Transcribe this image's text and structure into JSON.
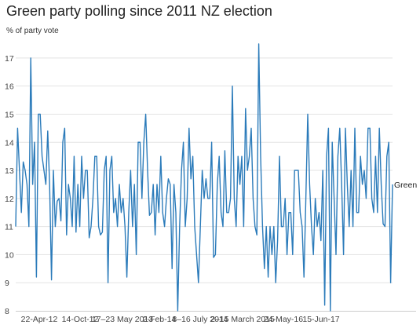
{
  "chart_data": {
    "type": "line",
    "title": "Green party polling since 2011 NZ election",
    "subtitle": "% of party vote",
    "ylim": [
      8,
      17.5
    ],
    "yticks": [
      8,
      9,
      10,
      11,
      12,
      13,
      14,
      15,
      16,
      17
    ],
    "xlim": [
      0,
      270
    ],
    "xticks": [
      {
        "x": 16,
        "label": "22-Apr-12"
      },
      {
        "x": 51,
        "label": "14-Oct-12"
      },
      {
        "x": 92,
        "label": "17–23 May 2013"
      },
      {
        "x": 138,
        "label": "2-Feb-14"
      },
      {
        "x": 179,
        "label": "8–16 July 2014"
      },
      {
        "x": 226,
        "label": "2–15 March 2015"
      },
      {
        "x": 269,
        "label": "24-May-16"
      },
      {
        "x": 306,
        "label": "15-Jun-17"
      }
    ],
    "grid": true,
    "series": [
      {
        "name": "Green",
        "color": "#2b7bba",
        "values": [
          11.0,
          14.5,
          13.0,
          11.5,
          13.3,
          13.0,
          12.5,
          11.0,
          17.0,
          12.5,
          14.0,
          9.2,
          15.0,
          15.0,
          13.5,
          13.0,
          12.5,
          14.4,
          12.5,
          9.1,
          13.0,
          11.0,
          11.9,
          12.0,
          11.2,
          14.0,
          14.5,
          10.7,
          12.5,
          12.0,
          11.0,
          13.5,
          10.8,
          12.5,
          11.0,
          13.5,
          12.0,
          13.0,
          13.0,
          10.6,
          11.0,
          12.0,
          13.5,
          13.5,
          11.0,
          10.7,
          10.8,
          13.0,
          13.5,
          9.0,
          13.0,
          13.5,
          11.5,
          12.0,
          11.0,
          12.5,
          11.5,
          12.0,
          11.0,
          9.2,
          11.5,
          13.0,
          11.0,
          12.5,
          10.0,
          14.0,
          14.0,
          12.0,
          14.0,
          15.0,
          13.0,
          11.4,
          11.5,
          12.5,
          10.7,
          12.5,
          11.5,
          13.5,
          11.5,
          11.0,
          12.0,
          12.7,
          12.5,
          9.5,
          12.5,
          11.5,
          8.0,
          11.0,
          13.0,
          14.0,
          11.0,
          12.0,
          14.5,
          12.7,
          13.5,
          11.0,
          10.0,
          9.0,
          11.0,
          13.0,
          12.0,
          12.7,
          12.0,
          12.0,
          14.0,
          9.9,
          10.0,
          12.5,
          13.5,
          11.5,
          11.0,
          13.7,
          11.5,
          11.5,
          12.0,
          16.0,
          12.0,
          11.0,
          13.5,
          12.5,
          13.5,
          11.0,
          15.2,
          13.0,
          13.5,
          14.5,
          12.0,
          11.0,
          10.7,
          17.5,
          13.5,
          11.0,
          9.5,
          11.0,
          9.2,
          11.0,
          10.0,
          11.0,
          9.0,
          10.5,
          13.5,
          11.0,
          11.0,
          12.0,
          10.0,
          11.5,
          11.5,
          10.0,
          13.0,
          13.0,
          13.0,
          11.5,
          11.0,
          9.2,
          12.0,
          15.0,
          12.5,
          11.0,
          10.0,
          12.0,
          11.0,
          11.5,
          10.5,
          13.0,
          8.2,
          13.5,
          14.5,
          8.0,
          14.0,
          12.0,
          10.0,
          13.5,
          14.5,
          12.5,
          10.0,
          14.5,
          12.5,
          11.0,
          13.0,
          11.0,
          14.5,
          11.5,
          11.5,
          13.5,
          12.5,
          13.0,
          12.0,
          14.5,
          14.5,
          12.0,
          11.5,
          13.5,
          11.5,
          14.5,
          12.5,
          11.1,
          11.0,
          13.5,
          14.0,
          9.0,
          12.5
        ]
      }
    ]
  }
}
